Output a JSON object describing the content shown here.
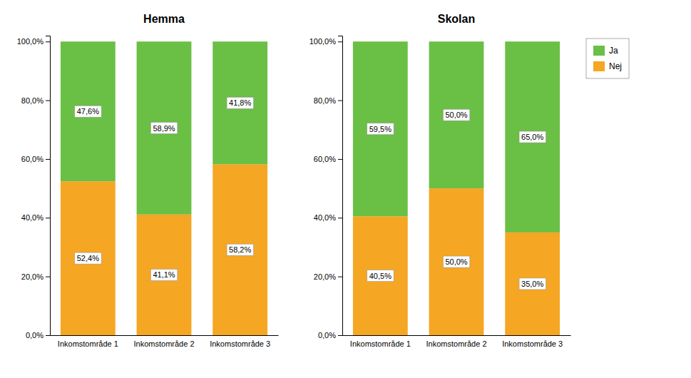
{
  "chart_data": [
    {
      "type": "bar",
      "title": "Hemma",
      "stacked": true,
      "data_labels": true,
      "grid": false,
      "categories": [
        "Inkomstområde 1",
        "Inkomstområde 2",
        "Inkomstområde 3"
      ],
      "series": [
        {
          "name": "Nej",
          "color": "#f5a623",
          "values": [
            52.4,
            41.1,
            58.2
          ],
          "value_labels": [
            "52,4%",
            "41,1%",
            "58,2%"
          ]
        },
        {
          "name": "Ja",
          "color": "#6abf45",
          "values": [
            47.6,
            58.9,
            41.8
          ],
          "value_labels": [
            "47,6%",
            "58,9%",
            "41,8%"
          ]
        }
      ],
      "ylim": [
        0,
        102
      ],
      "yticks": [
        {
          "value": 0,
          "label": "0,0%"
        },
        {
          "value": 20,
          "label": "20,0%"
        },
        {
          "value": 40,
          "label": "40,0%"
        },
        {
          "value": 60,
          "label": "60,0%"
        },
        {
          "value": 80,
          "label": "80,0%"
        },
        {
          "value": 100,
          "label": "100,0%"
        }
      ]
    },
    {
      "type": "bar",
      "title": "Skolan",
      "stacked": true,
      "data_labels": true,
      "grid": false,
      "legend": "upper right",
      "categories": [
        "Inkomstområde 1",
        "Inkomstområde 2",
        "Inkomstområde 3"
      ],
      "series": [
        {
          "name": "Nej",
          "color": "#f5a623",
          "values": [
            40.5,
            50.0,
            35.0
          ],
          "value_labels": [
            "40,5%",
            "50,0%",
            "35,0%"
          ]
        },
        {
          "name": "Ja",
          "color": "#6abf45",
          "values": [
            59.5,
            50.0,
            65.0
          ],
          "value_labels": [
            "59,5%",
            "50,0%",
            "65,0%"
          ]
        }
      ],
      "ylim": [
        0,
        102
      ],
      "yticks": [
        {
          "value": 0,
          "label": "0,0%"
        },
        {
          "value": 20,
          "label": "20,0%"
        },
        {
          "value": 40,
          "label": "40,0%"
        },
        {
          "value": 60,
          "label": "60,0%"
        },
        {
          "value": 80,
          "label": "80,0%"
        },
        {
          "value": 100,
          "label": "100,0%"
        }
      ]
    }
  ]
}
